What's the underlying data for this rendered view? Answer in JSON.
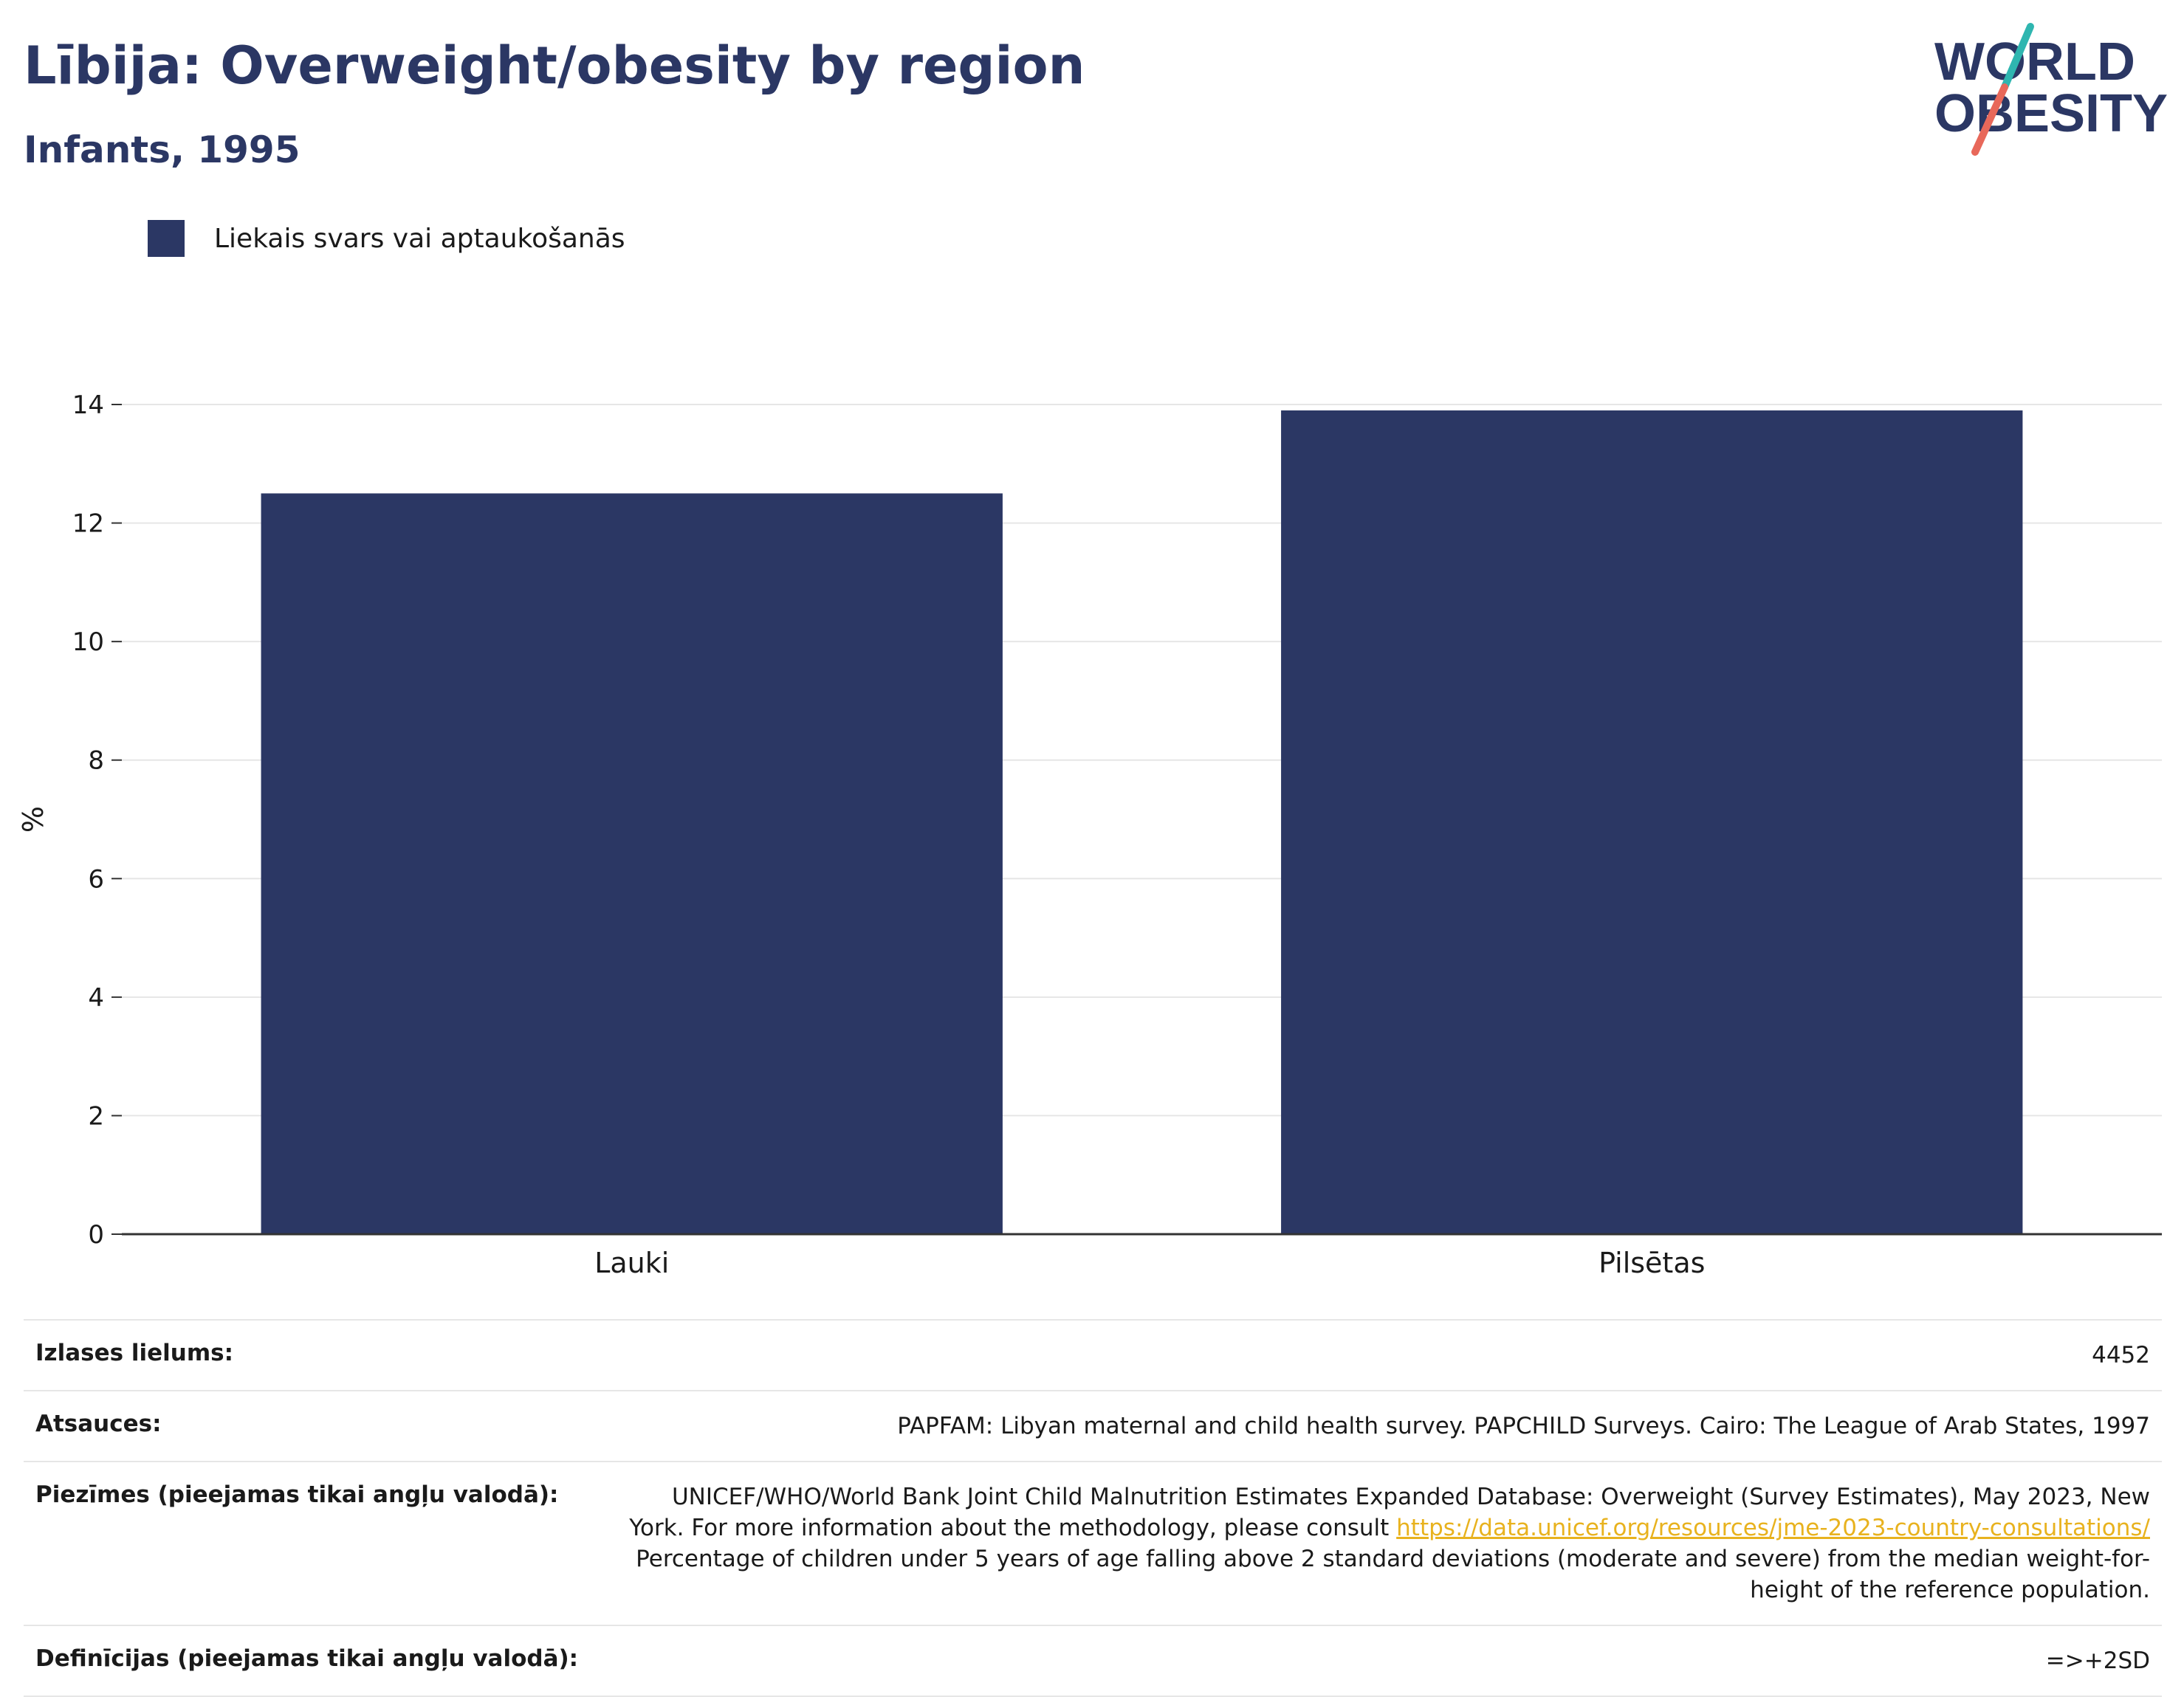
{
  "header": {
    "title": "Lībija: Overweight/obesity by region",
    "subtitle": "Infants, 1995"
  },
  "logo": {
    "line1": "WORLD",
    "line2": "OBESITY",
    "accent_teal": "#2fb6b0",
    "accent_red": "#e8685a"
  },
  "colors": {
    "bar": "#2b3764",
    "title": "#2b3764",
    "grid": "#e6e6e6",
    "axis": "#333333",
    "link": "#e8b21e"
  },
  "chart_data": {
    "type": "bar",
    "categories": [
      "Lauki",
      "Pilsētas"
    ],
    "series": [
      {
        "name": "Liekais svars vai aptaukošanās",
        "values": [
          12.5,
          13.9
        ]
      }
    ],
    "ylabel": "%",
    "ylim": [
      0,
      14
    ],
    "yticks": [
      0,
      2,
      4,
      6,
      8,
      10,
      12,
      14
    ],
    "grid": true,
    "legend": "top-left"
  },
  "info": {
    "sample_key": "Izlases lielums:",
    "sample_val": "4452",
    "refs_key": "Atsauces:",
    "refs_val": "PAPFAM: Libyan maternal and child health survey. PAPCHILD Surveys. Cairo: The League of Arab States, 1997",
    "notes_key": "Piezīmes (pieejamas tikai angļu valodā):",
    "notes_text1": "UNICEF/WHO/World Bank Joint Child Malnutrition Estimates Expanded Database: Overweight (Survey Estimates), May 2023, New York. For more information about the methodology, please consult",
    "notes_link": "https://data.unicef.org/resources/jme-2023-country-consultations/",
    "notes_text2": "Percentage of children under 5 years of age falling above 2 standard deviations (moderate and severe) from the median weight-for-height of the reference population.",
    "defs_key": "Definīcijas (pieejamas tikai angļu valodā):",
    "defs_val": "=>+2SD"
  }
}
